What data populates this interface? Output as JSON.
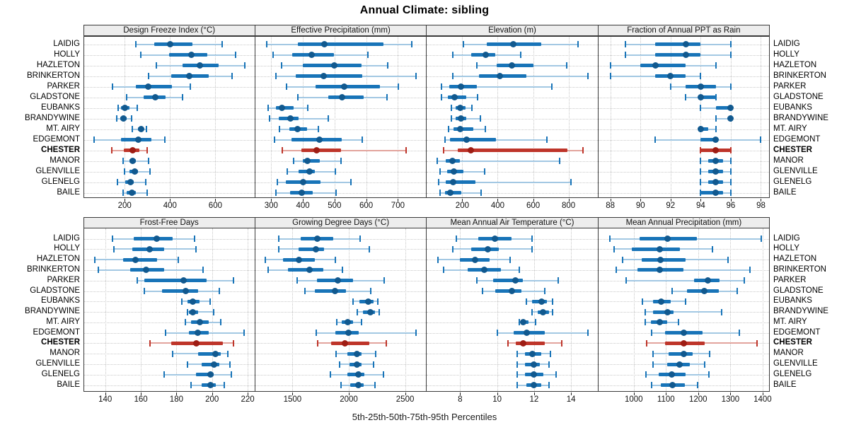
{
  "title": "Annual Climate: sibling",
  "caption": "5th-25th-50th-75th-95th Percentiles",
  "stations": [
    "LAIDIG",
    "HOLLY",
    "HAZLETON",
    "BRINKERTON",
    "PARKER",
    "GLADSTONE",
    "EUBANKS",
    "BRANDYWINE",
    "MT. AIRY",
    "EDGEMONT",
    "CHESTER",
    "MANOR",
    "GLENVILLE",
    "GLENELG",
    "BAILE"
  ],
  "highlight_station": "CHESTER",
  "percentile_labels": [
    "5th",
    "25th",
    "50th",
    "75th",
    "95th"
  ],
  "colors": {
    "blue": "#1874B8",
    "blue_light": "#A3C8E3",
    "blue_dot": "#11598F",
    "red": "#BE352A",
    "red_light": "#E2A49D",
    "red_dot": "#9E1D14",
    "strip_bg": "#EDEDED",
    "panel_border": "#3A3A3A",
    "grid": "#C6C6C6"
  },
  "chart_data": [
    {
      "type": "interval-dotplot",
      "title": "Design Freeze Index (°C)",
      "row": 0,
      "col": 0,
      "xlim": [
        20,
        770
      ],
      "ticks": [
        200,
        400,
        600
      ],
      "series": [
        [
          250,
          330,
          400,
          500,
          630
        ],
        [
          270,
          395,
          495,
          565,
          690
        ],
        [
          340,
          455,
          530,
          615,
          730
        ],
        [
          305,
          405,
          485,
          570,
          675
        ],
        [
          145,
          250,
          305,
          410,
          490
        ],
        [
          210,
          285,
          335,
          380,
          455
        ],
        [
          170,
          185,
          200,
          220,
          255
        ],
        [
          165,
          180,
          195,
          210,
          230
        ],
        [
          233,
          258,
          273,
          285,
          295
        ],
        [
          65,
          185,
          260,
          318,
          377
        ],
        [
          142,
          195,
          236,
          265,
          300
        ],
        [
          193,
          220,
          236,
          251,
          305
        ],
        [
          200,
          222,
          243,
          258,
          310
        ],
        [
          167,
          203,
          226,
          241,
          292
        ],
        [
          193,
          210,
          231,
          251,
          300
        ]
      ]
    },
    {
      "type": "interval-dotplot",
      "title": "Effective Precipitation (mm)",
      "row": 0,
      "col": 1,
      "xlim": [
        250,
        787
      ],
      "ticks": [
        300,
        400,
        500,
        600,
        700
      ],
      "series": [
        [
          285,
          385,
          468,
          655,
          745
        ],
        [
          307,
          367,
          428,
          498,
          606
        ],
        [
          332,
          401,
          500,
          585,
          667
        ],
        [
          315,
          378,
          465,
          587,
          757
        ],
        [
          348,
          441,
          530,
          643,
          702
        ],
        [
          384,
          480,
          524,
          591,
          665
        ],
        [
          290,
          315,
          333,
          372,
          416
        ],
        [
          296,
          324,
          361,
          387,
          480
        ],
        [
          327,
          357,
          384,
          413,
          450
        ],
        [
          310,
          364,
          453,
          522,
          587
        ],
        [
          335,
          396,
          443,
          520,
          727
        ],
        [
          372,
          401,
          415,
          453,
          520
        ],
        [
          350,
          387,
          421,
          439,
          502
        ],
        [
          320,
          347,
          401,
          456,
          552
        ],
        [
          315,
          359,
          396,
          431,
          504
        ]
      ]
    },
    {
      "type": "interval-dotplot",
      "title": "Elevation (m)",
      "row": 0,
      "col": 2,
      "xlim": [
        0,
        960
      ],
      "ticks": [
        200,
        400,
        600,
        800
      ],
      "series": [
        [
          205,
          340,
          490,
          645,
          855
        ],
        [
          147,
          252,
          331,
          388,
          532
        ],
        [
          283,
          393,
          482,
          603,
          791
        ],
        [
          147,
          296,
          414,
          561,
          909
        ],
        [
          82,
          125,
          193,
          283,
          705
        ],
        [
          82,
          117,
          157,
          222,
          288
        ],
        [
          138,
          161,
          187,
          217,
          253
        ],
        [
          138,
          164,
          191,
          222,
          301
        ],
        [
          121,
          152,
          187,
          262,
          332
        ],
        [
          103,
          130,
          226,
          391,
          677
        ],
        [
          95,
          175,
          250,
          795,
          880
        ],
        [
          60,
          107,
          143,
          187,
          750
        ],
        [
          73,
          113,
          152,
          205,
          325
        ],
        [
          68,
          107,
          147,
          275,
          815
        ],
        [
          73,
          103,
          134,
          196,
          306
        ]
      ]
    },
    {
      "type": "interval-dotplot",
      "title": "Fraction of Annual PPT as Rain",
      "row": 0,
      "col": 3,
      "xlim": [
        87.2,
        98.5
      ],
      "ticks": [
        88,
        90,
        92,
        94,
        96,
        98
      ],
      "series": [
        [
          89,
          91,
          93,
          94,
          96
        ],
        [
          89,
          91,
          93,
          94,
          96
        ],
        [
          88,
          90,
          91,
          93,
          95
        ],
        [
          88,
          91,
          92,
          93,
          94
        ],
        [
          92,
          93,
          94,
          95,
          96
        ],
        [
          93,
          94,
          94,
          95,
          95
        ],
        [
          94,
          95,
          96,
          96,
          96
        ],
        [
          95,
          96,
          96,
          96,
          96
        ],
        [
          94,
          94,
          94,
          94.5,
          95
        ],
        [
          91,
          94,
          95,
          95,
          98
        ],
        [
          94,
          94,
          95,
          96,
          96
        ],
        [
          94,
          94.5,
          95,
          95.5,
          96
        ],
        [
          94,
          94.5,
          95,
          95.5,
          96
        ],
        [
          94,
          94.5,
          95,
          95.5,
          96
        ],
        [
          94,
          94,
          95,
          95.5,
          96
        ]
      ]
    },
    {
      "type": "interval-dotplot",
      "title": "Frost-Free Days",
      "row": 1,
      "col": 0,
      "xlim": [
        128,
        223.5
      ],
      "ticks": [
        140,
        160,
        180,
        200,
        220
      ],
      "series": [
        [
          144,
          156,
          169,
          178,
          190
        ],
        [
          145,
          155,
          165,
          173,
          191
        ],
        [
          134,
          150,
          157,
          169,
          181
        ],
        [
          136,
          154,
          163,
          173,
          195
        ],
        [
          158,
          162,
          184,
          197,
          212
        ],
        [
          162,
          172,
          185,
          192,
          204
        ],
        [
          183,
          186,
          189,
          193,
          199
        ],
        [
          186,
          187,
          189,
          192,
          201
        ],
        [
          185,
          188,
          193,
          198,
          205
        ],
        [
          174,
          187,
          192,
          198,
          218
        ],
        [
          165,
          177,
          191,
          206,
          212
        ],
        [
          178,
          192,
          202,
          205,
          209
        ],
        [
          186,
          194,
          201,
          204,
          210
        ],
        [
          173,
          191,
          199,
          201,
          211
        ],
        [
          188,
          194,
          199,
          202,
          207
        ]
      ]
    },
    {
      "type": "interval-dotplot",
      "title": "Growing Degree Days (°C)",
      "row": 1,
      "col": 1,
      "xlim": [
        1170,
        2680
      ],
      "ticks": [
        1500,
        2000,
        2500
      ],
      "series": [
        [
          1380,
          1570,
          1720,
          1860,
          2100
        ],
        [
          1380,
          1555,
          1710,
          1780,
          2180
        ],
        [
          1260,
          1415,
          1560,
          1700,
          1880
        ],
        [
          1285,
          1460,
          1650,
          1775,
          1945
        ],
        [
          1540,
          1720,
          1900,
          2040,
          2315
        ],
        [
          1610,
          1700,
          1875,
          1975,
          2195
        ],
        [
          2035,
          2095,
          2175,
          2220,
          2255
        ],
        [
          2075,
          2125,
          2190,
          2235,
          2270
        ],
        [
          1895,
          1940,
          1990,
          2035,
          2115
        ],
        [
          1710,
          1880,
          2000,
          2090,
          2595
        ],
        [
          1725,
          1840,
          1965,
          2185,
          2335
        ],
        [
          1885,
          1985,
          2075,
          2110,
          2240
        ],
        [
          1920,
          2005,
          2075,
          2115,
          2220
        ],
        [
          1835,
          1985,
          2085,
          2135,
          2305
        ],
        [
          1930,
          2010,
          2085,
          2130,
          2235
        ]
      ]
    },
    {
      "type": "interval-dotplot",
      "title": "Mean Annual Air Temperature (°C)",
      "row": 1,
      "col": 2,
      "xlim": [
        6.2,
        15.4
      ],
      "ticks": [
        8,
        10,
        12,
        14
      ],
      "series": [
        [
          7.8,
          9.0,
          9.9,
          10.8,
          11.9
        ],
        [
          7.6,
          8.6,
          9.5,
          10.1,
          11.9
        ],
        [
          6.8,
          8.0,
          8.8,
          9.6,
          10.7
        ],
        [
          7.1,
          8.4,
          9.3,
          10.2,
          11.2
        ],
        [
          8.9,
          9.8,
          11.0,
          11.4,
          13.3
        ],
        [
          9.2,
          9.9,
          10.8,
          11.3,
          12.6
        ],
        [
          11.6,
          11.9,
          12.4,
          12.7,
          13.0
        ],
        [
          11.9,
          12.2,
          12.5,
          12.8,
          13.0
        ],
        [
          11.2,
          11.3,
          11.4,
          11.7,
          12.1
        ],
        [
          10.0,
          10.9,
          11.6,
          12.6,
          14.9
        ],
        [
          10.6,
          11.0,
          11.4,
          12.6,
          13.5
        ],
        [
          11.1,
          11.5,
          11.9,
          12.4,
          12.9
        ],
        [
          11.1,
          11.5,
          12.0,
          12.3,
          12.8
        ],
        [
          11.1,
          11.5,
          12.0,
          12.5,
          13.2
        ],
        [
          11.1,
          11.6,
          12.0,
          12.4,
          12.8
        ]
      ]
    },
    {
      "type": "interval-dotplot",
      "title": "Mean Annual Precipitation (mm)",
      "row": 1,
      "col": 3,
      "xlim": [
        890,
        1418
      ],
      "ticks": [
        1000,
        1100,
        1200,
        1300,
        1400
      ],
      "series": [
        [
          927,
          1018,
          1105,
          1196,
          1395
        ],
        [
          940,
          995,
          1080,
          1143,
          1245
        ],
        [
          966,
          1024,
          1082,
          1160,
          1293
        ],
        [
          945,
          1012,
          1080,
          1155,
          1361
        ],
        [
          976,
          1187,
          1230,
          1267,
          1344
        ],
        [
          1119,
          1165,
          1220,
          1264,
          1322
        ],
        [
          1027,
          1060,
          1085,
          1114,
          1162
        ],
        [
          1036,
          1060,
          1104,
          1124,
          1274
        ],
        [
          1036,
          1053,
          1080,
          1104,
          1138
        ],
        [
          1056,
          1097,
          1155,
          1213,
          1327
        ],
        [
          1041,
          1097,
          1155,
          1220,
          1383
        ],
        [
          1060,
          1109,
          1155,
          1184,
          1235
        ],
        [
          1060,
          1104,
          1143,
          1175,
          1220
        ],
        [
          1039,
          1078,
          1119,
          1162,
          1233
        ],
        [
          1056,
          1085,
          1121,
          1158,
          1199
        ]
      ]
    }
  ]
}
